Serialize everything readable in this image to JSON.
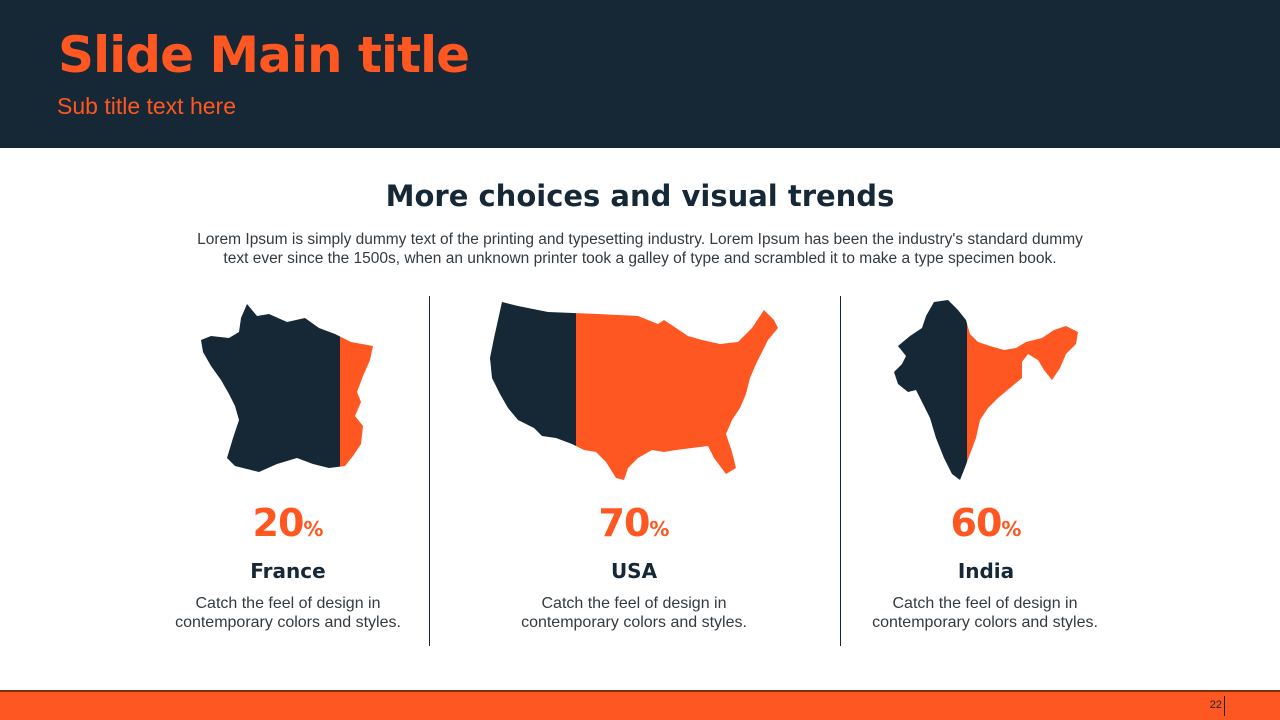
{
  "slide": {
    "title": "Slide Main title",
    "subtitle": "Sub title text here",
    "page_number": "22"
  },
  "section": {
    "heading": "More choices and visual trends",
    "intro": "Lorem Ipsum is simply dummy text of the printing and typesetting industry. Lorem Ipsum has been the industry's standard dummy text ever since the 1500s, when an unknown printer took a galley of type and scrambled it to make a type specimen book."
  },
  "colors": {
    "navy": "#162736",
    "orange": "#ff5722"
  },
  "stats": [
    {
      "country": "France",
      "value": "20",
      "unit": "%",
      "fill_fraction": 0.2,
      "icon": "france-map-icon",
      "description": "Catch the feel of design in contemporary colors and styles."
    },
    {
      "country": "USA",
      "value": "70",
      "unit": "%",
      "fill_fraction": 0.7,
      "icon": "usa-map-icon",
      "description": "Catch the feel of design in contemporary colors and styles."
    },
    {
      "country": "India",
      "value": "60",
      "unit": "%",
      "fill_fraction": 0.6,
      "icon": "india-map-icon",
      "description": "Catch the feel of design in contemporary colors and styles."
    }
  ]
}
